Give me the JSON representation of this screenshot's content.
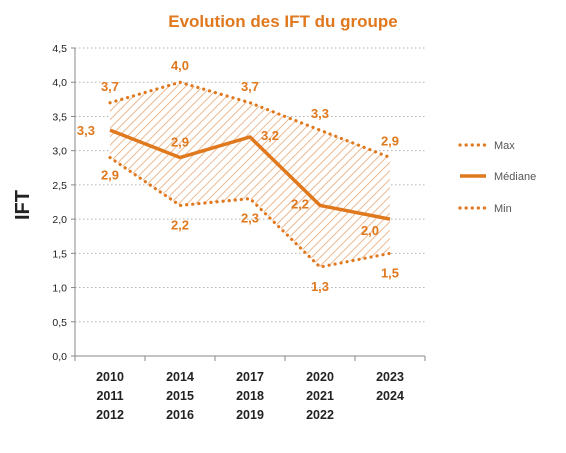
{
  "chart_data": {
    "type": "line",
    "title": "Evolution des IFT du groupe",
    "ylabel": "IFT",
    "xlabel": "",
    "ylim": [
      0,
      4.5
    ],
    "yticks": [
      "0,0",
      "0,5",
      "1,0",
      "1,5",
      "2,0",
      "2,5",
      "3,0",
      "3,5",
      "4,0",
      "4,5"
    ],
    "categories": [
      [
        "2010",
        "2011",
        "2012"
      ],
      [
        "2014",
        "2015",
        "2016"
      ],
      [
        "2017",
        "2018",
        "2019"
      ],
      [
        "2020",
        "2021",
        "2022"
      ],
      [
        "2023",
        "2024"
      ]
    ],
    "series": [
      {
        "name": "Max",
        "values": [
          3.7,
          4.0,
          3.7,
          3.3,
          2.9
        ],
        "labels": [
          "3,7",
          "4,0",
          "3,7",
          "3,3",
          "2,9"
        ],
        "style": "dotted",
        "color": "#e0781e"
      },
      {
        "name": "Médiane",
        "values": [
          3.3,
          2.9,
          3.2,
          2.2,
          2.0
        ],
        "labels": [
          "3,3",
          "2,9",
          "3,2",
          "2,2",
          "2,0"
        ],
        "style": "solid",
        "color": "#e0781e"
      },
      {
        "name": "Min",
        "values": [
          2.9,
          2.2,
          2.3,
          1.3,
          1.5
        ],
        "labels": [
          "2,9",
          "2,2",
          "2,3",
          "1,3",
          "1,5"
        ],
        "style": "dotted",
        "color": "#e0781e"
      }
    ],
    "band": "hatched area between Min and Max",
    "grid": true,
    "legend": "right"
  }
}
